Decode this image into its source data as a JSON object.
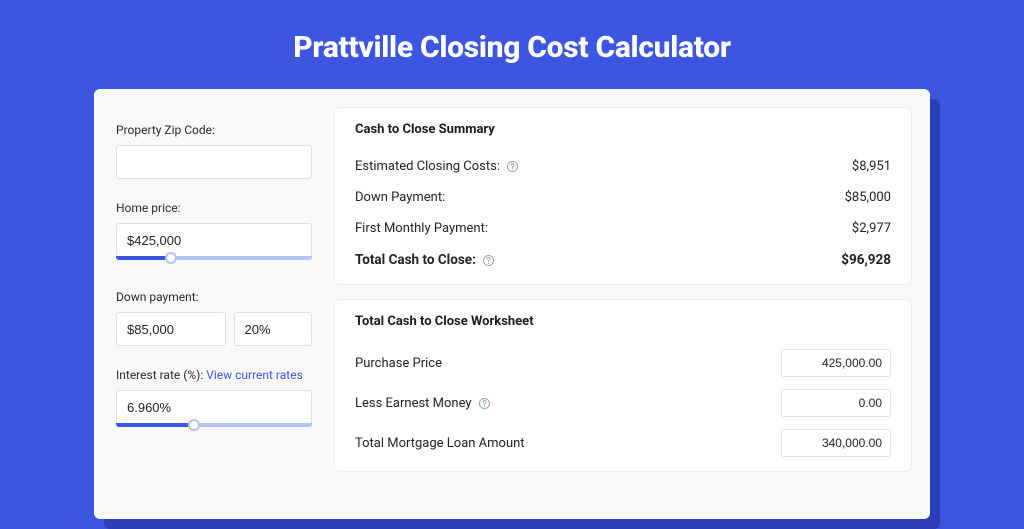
{
  "colors": {
    "page_bg": "#3d56e0",
    "card_shadow": "#2c3fb8",
    "card_bg": "#f7f9fb",
    "panel_bg": "#ffffff",
    "panel_border": "#eceef2",
    "input_border": "#dcdfe5",
    "text": "#232323",
    "title_text": "#ffffff",
    "slider_track": "#b6c3f0",
    "slider_fill": "#3d56e0",
    "link": "#3d56e0",
    "help_icon_stroke": "#9aa2ad"
  },
  "typography": {
    "title_fontsize": 30,
    "title_weight": 800,
    "label_fontsize": 12,
    "body_fontsize": 13
  },
  "title": "Prattville Closing Cost Calculator",
  "form": {
    "zip_label": "Property Zip Code:",
    "zip_value": "",
    "home_price_label": "Home price:",
    "home_price_value": "$425,000",
    "home_price_slider": {
      "fill_pct": 28,
      "thumb_pct": 28
    },
    "down_payment_label": "Down payment:",
    "down_payment_value": "$85,000",
    "down_payment_pct": "20%",
    "rate_label": "Interest rate (%): ",
    "rate_link_text": "View current rates",
    "rate_value": "6.960%",
    "rate_slider": {
      "fill_pct": 40,
      "thumb_pct": 40
    }
  },
  "summary": {
    "heading": "Cash to Close Summary",
    "rows": [
      {
        "label": "Estimated Closing Costs:",
        "value": "$8,951",
        "help": true,
        "bold": false
      },
      {
        "label": "Down Payment:",
        "value": "$85,000",
        "help": false,
        "bold": false
      },
      {
        "label": "First Monthly Payment:",
        "value": "$2,977",
        "help": false,
        "bold": false
      },
      {
        "label": "Total Cash to Close:",
        "value": "$96,928",
        "help": true,
        "bold": true
      }
    ]
  },
  "worksheet": {
    "heading": "Total Cash to Close Worksheet",
    "rows": [
      {
        "label": "Purchase Price",
        "value": "425,000.00",
        "help": false
      },
      {
        "label": "Less Earnest Money",
        "value": "0.00",
        "help": true
      },
      {
        "label": "Total Mortgage Loan Amount",
        "value": "340,000.00",
        "help": false
      }
    ]
  }
}
